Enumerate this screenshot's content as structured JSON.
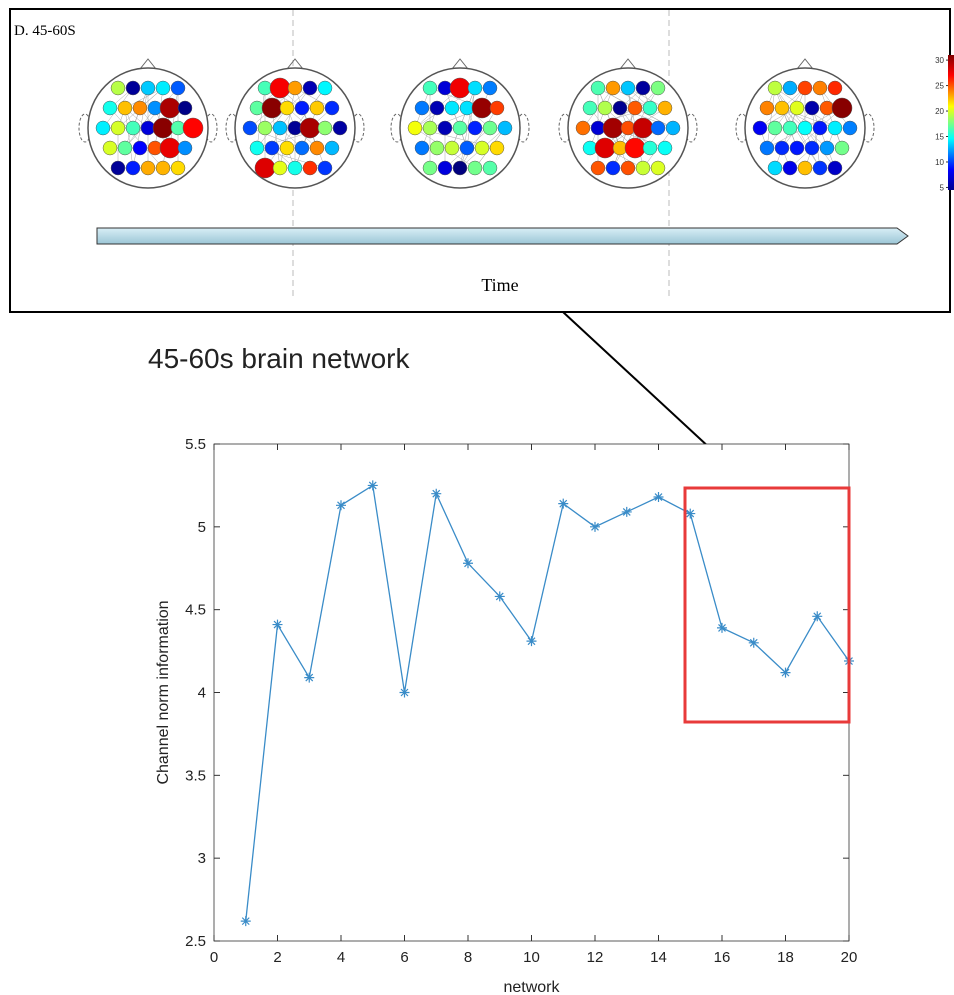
{
  "panel": {
    "label": "D. 45-60S",
    "axis_label": "Time",
    "colorbar_lim": [
      4.5,
      31
    ],
    "colorbar_ticks": [
      5,
      10,
      15,
      20,
      25,
      30
    ]
  },
  "caption": "45-60s brain network",
  "chart_data": {
    "type": "line",
    "x": [
      1,
      2,
      3,
      4,
      5,
      6,
      7,
      8,
      9,
      10,
      11,
      12,
      13,
      14,
      15,
      16,
      17,
      18,
      19,
      20
    ],
    "values": [
      2.62,
      4.41,
      4.09,
      5.13,
      5.25,
      4.0,
      5.2,
      4.78,
      4.58,
      4.31,
      5.14,
      5.0,
      5.09,
      5.18,
      5.08,
      4.39,
      4.3,
      4.12,
      4.46,
      4.19
    ],
    "color": "#3a8cc8",
    "xlabel": "network",
    "ylabel": "Channel norm information",
    "xlim": [
      0,
      20
    ],
    "ylim": [
      2.5,
      5.5
    ],
    "xticks": [
      0,
      2,
      4,
      6,
      8,
      10,
      12,
      14,
      16,
      18,
      20
    ],
    "yticks": [
      2.5,
      3,
      3.5,
      4,
      4.5,
      5,
      5.5
    ]
  }
}
